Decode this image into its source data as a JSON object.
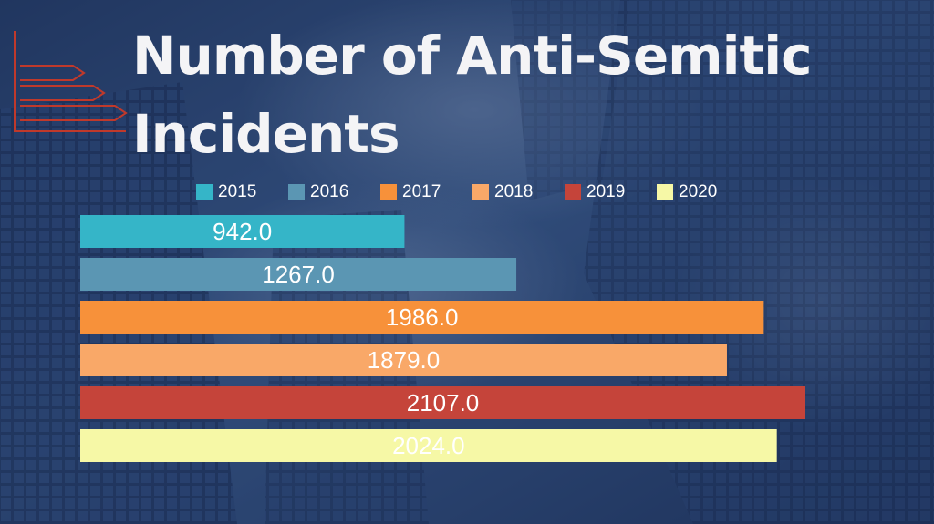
{
  "chart_data": {
    "type": "bar",
    "orientation": "horizontal",
    "title": "Number of Anti-Semitic Incidents",
    "categories": [
      "2015",
      "2016",
      "2017",
      "2018",
      "2019",
      "2020"
    ],
    "values": [
      942.0,
      1267.0,
      1986.0,
      1879.0,
      2107.0,
      2024.0
    ],
    "value_labels": [
      "942.0",
      "1267.0",
      "1986.0",
      "1879.0",
      "2107.0",
      "2024.0"
    ],
    "colors": [
      "#35b5c8",
      "#5b96b3",
      "#f7913a",
      "#f9a868",
      "#c5443a",
      "#f6f8a6"
    ],
    "legend_position": "top",
    "grid": false,
    "xlim": [
      0,
      2200
    ]
  }
}
